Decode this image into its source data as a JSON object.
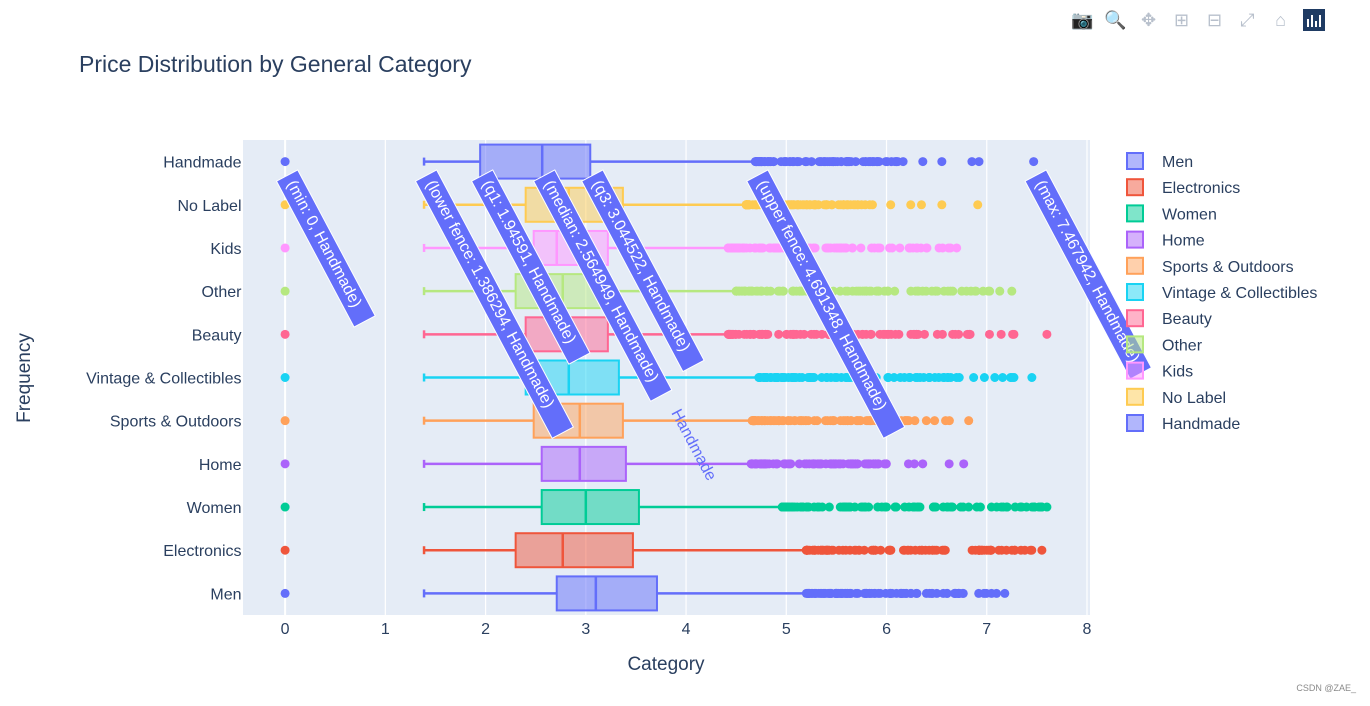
{
  "modebar": {
    "buttons": [
      {
        "name": "camera-icon",
        "glyph": "📷"
      },
      {
        "name": "zoom-icon",
        "glyph": "🔍"
      },
      {
        "name": "pan-icon",
        "glyph": "✥"
      },
      {
        "name": "zoom-in-icon",
        "glyph": "⊞"
      },
      {
        "name": "zoom-out-icon",
        "glyph": "⊟"
      },
      {
        "name": "autoscale-icon",
        "glyph": "⤢"
      },
      {
        "name": "home-icon",
        "glyph": "⌂"
      }
    ],
    "logo": "plotly-logo-icon"
  },
  "watermark": "CSDN @ZAE_",
  "chart_data": {
    "type": "box",
    "orientation": "horizontal",
    "title": "Price Distribution by General Category",
    "xlabel": "Category",
    "ylabel": "Frequency",
    "xlim": [
      -0.42,
      8.03
    ],
    "xticks": [
      0,
      1,
      2,
      3,
      4,
      5,
      6,
      7,
      8
    ],
    "grid": true,
    "legend_position": "right",
    "categories": [
      "Men",
      "Electronics",
      "Women",
      "Home",
      "Sports & Outdoors",
      "Vintage & Collectibles",
      "Beauty",
      "Other",
      "Kids",
      "No Label",
      "Handmade"
    ],
    "series": [
      {
        "name": "Men",
        "color": "#636efa",
        "min": 0,
        "lower_fence": 1.386294,
        "q1": 2.71,
        "median": 3.1,
        "q3": 3.71,
        "upper_fence": 5.2,
        "outliers_to": 6.93,
        "max": 7.18
      },
      {
        "name": "Electronics",
        "color": "#ef553b",
        "min": 0,
        "lower_fence": 1.386294,
        "q1": 2.3,
        "median": 2.77,
        "q3": 3.47,
        "upper_fence": 5.2,
        "outliers_to": 7.3,
        "max": 7.55
      },
      {
        "name": "Women",
        "color": "#00cc96",
        "min": 0,
        "lower_fence": 1.386294,
        "q1": 2.56,
        "median": 3.0,
        "q3": 3.53,
        "upper_fence": 4.96,
        "outliers_to": 7.5,
        "max": 7.6
      },
      {
        "name": "Home",
        "color": "#ab63fa",
        "min": 0,
        "lower_fence": 1.386294,
        "q1": 2.56,
        "median": 2.94,
        "q3": 3.4,
        "upper_fence": 4.65,
        "outliers_to": 6.1,
        "max": 6.77
      },
      {
        "name": "Sports & Outdoors",
        "color": "#ffa15a",
        "min": 0,
        "lower_fence": 1.386294,
        "q1": 2.48,
        "median": 2.94,
        "q3": 3.37,
        "upper_fence": 4.66,
        "outliers_to": 6.3,
        "max": 6.82
      },
      {
        "name": "Vintage & Collectibles",
        "color": "#19d3f3",
        "min": 0,
        "lower_fence": 1.386294,
        "q1": 2.4,
        "median": 2.83,
        "q3": 3.33,
        "upper_fence": 4.72,
        "outliers_to": 7.1,
        "max": 7.45
      },
      {
        "name": "Beauty",
        "color": "#ff6692",
        "min": 0,
        "lower_fence": 1.386294,
        "q1": 2.4,
        "median": 2.77,
        "q3": 3.22,
        "upper_fence": 4.42,
        "outliers_to": 6.9,
        "max": 7.6
      },
      {
        "name": "Other",
        "color": "#b6e880",
        "min": 0,
        "lower_fence": 1.386294,
        "q1": 2.3,
        "median": 2.77,
        "q3": 3.22,
        "upper_fence": 4.5,
        "outliers_to": 6.9,
        "max": 7.25
      },
      {
        "name": "Kids",
        "color": "#ff97ff",
        "min": 0,
        "lower_fence": 1.386294,
        "q1": 2.48,
        "median": 2.71,
        "q3": 3.22,
        "upper_fence": 4.42,
        "outliers_to": 6.5,
        "max": 6.7
      },
      {
        "name": "No Label",
        "color": "#fecb52",
        "min": 0,
        "lower_fence": 1.386294,
        "q1": 2.4,
        "median": 2.83,
        "q3": 3.37,
        "upper_fence": 4.6,
        "outliers_to": 5.9,
        "max": 6.91
      },
      {
        "name": "Handmade",
        "color": "#636efa",
        "min": 0,
        "lower_fence": 1.386294,
        "q1": 1.94591,
        "median": 2.564949,
        "q3": 3.044522,
        "upper_fence": 4.691348,
        "outliers_to": 6.2,
        "max": 7.467942
      }
    ],
    "hover_labels": [
      {
        "text": "(min: 0, Handmade)",
        "x": 0
      },
      {
        "text": "(lower fence: 1.386294, Handmade)",
        "x": 1.386294
      },
      {
        "text": "(q1: 1.94591, Handmade)",
        "x": 1.94591
      },
      {
        "text": "(median: 2.564949, Handmade)",
        "x": 2.564949
      },
      {
        "text": "(q3: 3.044522, Handmade)",
        "x": 3.044522
      },
      {
        "text": "(upper fence: 4.691348, Handmade)",
        "x": 4.691348
      },
      {
        "text": "(max: 7.467942, Handmade)",
        "x": 7.467942
      }
    ],
    "hover_trace_label": "Handmade"
  }
}
